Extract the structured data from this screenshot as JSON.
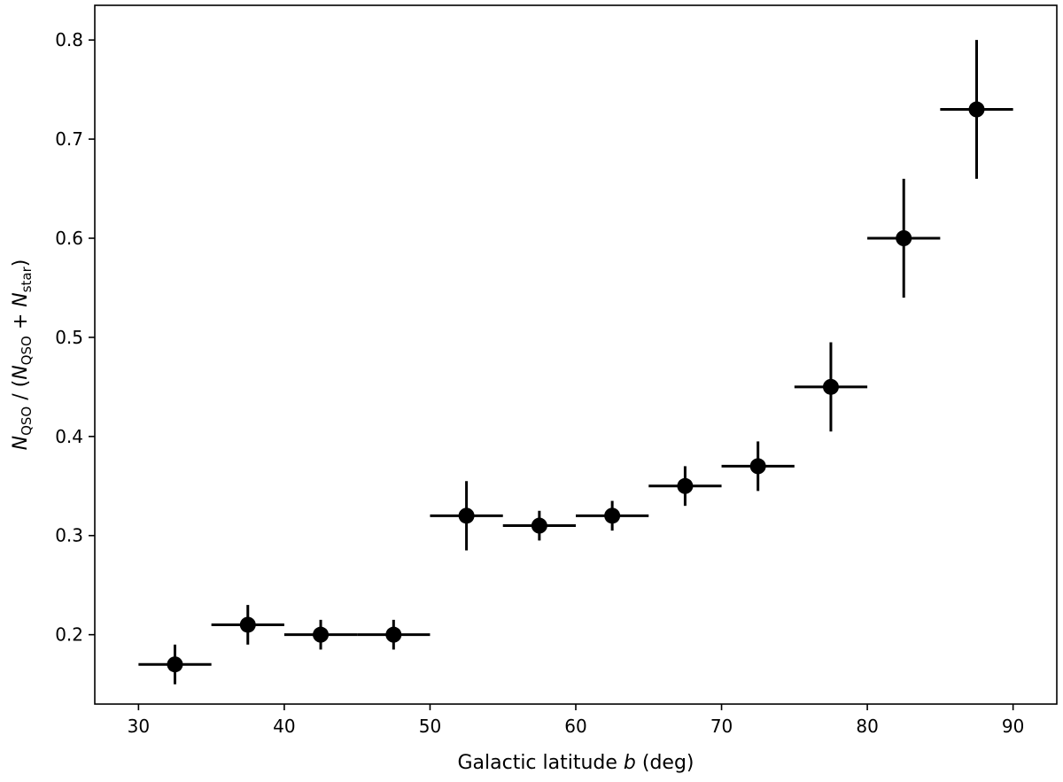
{
  "chart_data": {
    "type": "scatter",
    "xlabel": {
      "pre": "Galactic latitude ",
      "var": "b",
      "post": " (deg)"
    },
    "ylabel": {
      "n1": "N",
      "sub1": "QSO",
      "mid": " / (",
      "n2": "N",
      "sub2": "QSO",
      "plus": " + ",
      "n3": "N",
      "sub3": "star",
      "close": ")"
    },
    "xlim": [
      27,
      93
    ],
    "ylim": [
      0.13,
      0.835
    ],
    "xticks": [
      30,
      40,
      50,
      60,
      70,
      80,
      90
    ],
    "xtick_labels": [
      "30",
      "40",
      "50",
      "60",
      "70",
      "80",
      "90"
    ],
    "yticks": [
      0.2,
      0.3,
      0.4,
      0.5,
      0.6,
      0.7,
      0.8
    ],
    "ytick_labels": [
      "0.2",
      "0.3",
      "0.4",
      "0.5",
      "0.6",
      "0.7",
      "0.8"
    ],
    "grid": false,
    "series": [
      {
        "marker": "circle",
        "color": "#000000",
        "points": [
          {
            "x": 32.5,
            "y": 0.17,
            "xerr": 2.5,
            "yerr": 0.02
          },
          {
            "x": 37.5,
            "y": 0.21,
            "xerr": 2.5,
            "yerr": 0.02
          },
          {
            "x": 42.5,
            "y": 0.2,
            "xerr": 2.5,
            "yerr": 0.015
          },
          {
            "x": 47.5,
            "y": 0.2,
            "xerr": 2.5,
            "yerr": 0.015
          },
          {
            "x": 52.5,
            "y": 0.32,
            "xerr": 2.5,
            "yerr": 0.035
          },
          {
            "x": 57.5,
            "y": 0.31,
            "xerr": 2.5,
            "yerr": 0.015
          },
          {
            "x": 62.5,
            "y": 0.32,
            "xerr": 2.5,
            "yerr": 0.015
          },
          {
            "x": 67.5,
            "y": 0.35,
            "xerr": 2.5,
            "yerr": 0.02
          },
          {
            "x": 72.5,
            "y": 0.37,
            "xerr": 2.5,
            "yerr": 0.025
          },
          {
            "x": 77.5,
            "y": 0.45,
            "xerr": 2.5,
            "yerr": 0.045
          },
          {
            "x": 82.5,
            "y": 0.6,
            "xerr": 2.5,
            "yerr": 0.06
          },
          {
            "x": 87.5,
            "y": 0.73,
            "xerr": 2.5,
            "yerr": 0.07
          }
        ]
      }
    ]
  }
}
